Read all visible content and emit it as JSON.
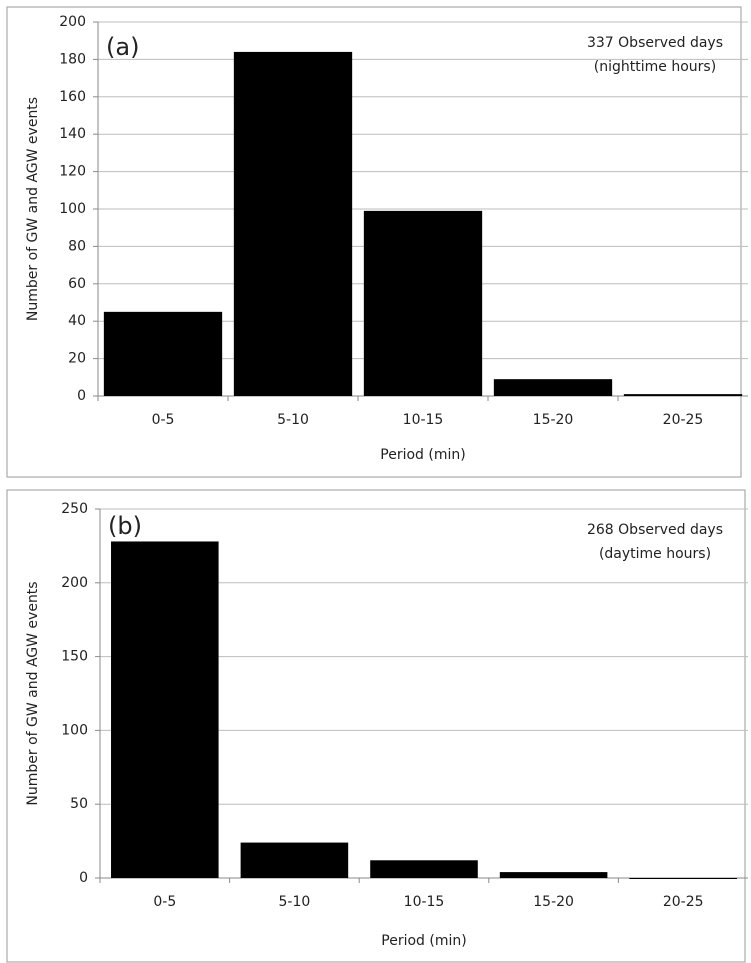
{
  "chart_data": [
    {
      "type": "bar",
      "panel_label": "(a)",
      "note": [
        "337 Observed days",
        "(nighttime hours)"
      ],
      "xlabel": "Period (min)",
      "ylabel": "Number of  GW and AGW events",
      "categories": [
        "0-5",
        "5-10",
        "10-15",
        "15-20",
        "20-25"
      ],
      "values": [
        45,
        184,
        99,
        9,
        1
      ],
      "color": "#000000",
      "ylim": [
        0,
        200
      ],
      "yticks": [
        0,
        20,
        40,
        60,
        80,
        100,
        120,
        140,
        160,
        180,
        200
      ],
      "grid": true
    },
    {
      "type": "bar",
      "panel_label": "(b)",
      "note": [
        "268 Observed days",
        "(daytime hours)"
      ],
      "xlabel": "Period (min)",
      "ylabel": "Number of GW and AGW events",
      "categories": [
        "0-5",
        "5-10",
        "10-15",
        "15-20",
        "20-25"
      ],
      "values": [
        228,
        24,
        12,
        4,
        0
      ],
      "color": "#000000",
      "ylim": [
        0,
        250
      ],
      "yticks": [
        0,
        50,
        100,
        150,
        200,
        250
      ],
      "grid": true
    }
  ]
}
